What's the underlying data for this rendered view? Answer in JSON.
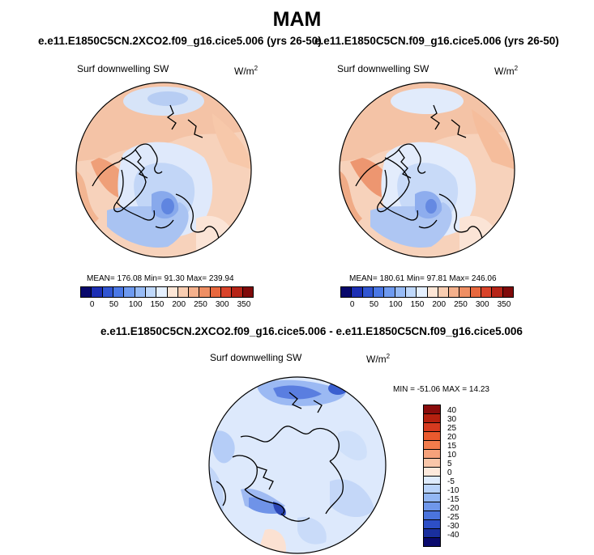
{
  "main_title": "MAM",
  "panels": [
    {
      "title": "e.e11.E1850C5CN.2XCO2.f09_g16.cice5.006 (yrs 26-50)",
      "variable": "Surf downwelling SW",
      "units": "W/m",
      "units_sup": "2",
      "stats": "MEAN= 176.08  Min= 91.30  Max= 239.94",
      "mean": 176.08,
      "min": 91.3,
      "max": 239.94
    },
    {
      "title": "e.e11.E1850C5CN.f09_g16.cice5.006 (yrs 26-50)",
      "variable": "Surf downwelling SW",
      "units": "W/m",
      "units_sup": "2",
      "stats": "MEAN= 180.61  Min= 97.81  Max= 246.06",
      "mean": 180.61,
      "min": 97.81,
      "max": 246.06
    },
    {
      "title": "e.e11.E1850C5CN.2XCO2.f09_g16.cice5.006 - e.e11.E1850C5CN.f09_g16.cice5.006",
      "variable": "Surf downwelling SW",
      "units": "W/m",
      "units_sup": "2",
      "stats": "MIN = -51.06 MAX = 14.23",
      "min": -51.06,
      "max": 14.23
    }
  ],
  "abs_colorbar": {
    "labels": [
      "0",
      "50",
      "100",
      "150",
      "200",
      "250",
      "300",
      "350"
    ],
    "colors": [
      "#08086b",
      "#1c2fb4",
      "#3055d2",
      "#4a78e6",
      "#6e9af0",
      "#97bbf6",
      "#bfd8fb",
      "#e5f0ff",
      "#fde6d6",
      "#f9cdb1",
      "#f4b08c",
      "#ef8f64",
      "#e8683e",
      "#d9432a",
      "#b52417",
      "#7f0a0a"
    ]
  },
  "diff_colorbar": {
    "labels": [
      "40",
      "30",
      "25",
      "20",
      "15",
      "10",
      "5",
      "0",
      "-5",
      "-10",
      "-15",
      "-20",
      "-25",
      "-30",
      "-40"
    ],
    "colors": [
      "#8a0c0c",
      "#b5200f",
      "#d63a1f",
      "#ea5a2e",
      "#f27c4c",
      "#f6a27b",
      "#f9c6a9",
      "#fde9dc",
      "#deebfd",
      "#b9d3fa",
      "#93b7f4",
      "#6f97eb",
      "#4b74dd",
      "#2d4fc6",
      "#1a2f9e",
      "#0a0a6e"
    ]
  }
}
